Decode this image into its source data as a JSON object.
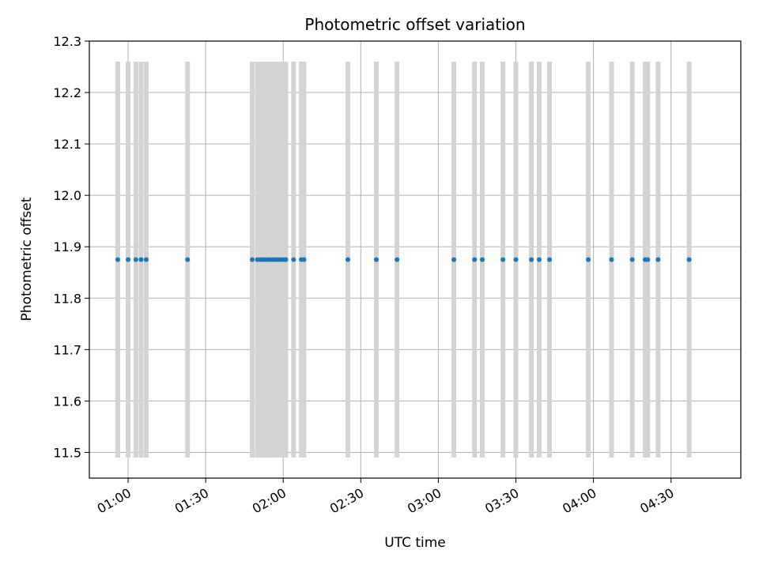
{
  "chart_data": {
    "type": "scatter",
    "title": "Photometric offset variation",
    "xlabel": "UTC time",
    "ylabel": "Photometric offset",
    "x_unit": "HH:MM",
    "xlim": [
      "00:45",
      "04:57"
    ],
    "ylim": [
      11.45,
      12.3
    ],
    "grid": true,
    "x_ticks": [
      "01:00",
      "01:30",
      "02:00",
      "02:30",
      "03:00",
      "03:30",
      "04:00",
      "04:30"
    ],
    "y_ticks": [
      11.5,
      11.6,
      11.7,
      11.8,
      11.9,
      12.0,
      12.1,
      12.2,
      12.3
    ],
    "points": {
      "color": "#1f77b4",
      "y": 11.875,
      "x": [
        "00:56",
        "01:00",
        "01:03",
        "01:05",
        "01:07",
        "01:23",
        "01:48",
        "01:50",
        "01:51",
        "01:52",
        "01:53",
        "01:54",
        "01:55",
        "01:56",
        "01:57",
        "01:58",
        "01:59",
        "02:00",
        "02:01",
        "02:04",
        "02:07",
        "02:08",
        "02:25",
        "02:36",
        "02:44",
        "03:06",
        "03:14",
        "03:17",
        "03:25",
        "03:30",
        "03:36",
        "03:39",
        "03:43",
        "03:58",
        "04:07",
        "04:15",
        "04:20",
        "04:21",
        "04:25",
        "04:37"
      ]
    },
    "vertical_bands": {
      "color": "#d3d3d3",
      "y_range": [
        11.49,
        12.26
      ],
      "x": [
        "00:56",
        "01:00",
        "01:03",
        "01:05",
        "01:07",
        "01:23",
        "01:48",
        "01:50",
        "01:51",
        "01:52",
        "01:53",
        "01:54",
        "01:55",
        "01:56",
        "01:57",
        "01:58",
        "01:59",
        "02:00",
        "02:01",
        "02:04",
        "02:07",
        "02:08",
        "02:25",
        "02:36",
        "02:44",
        "03:06",
        "03:14",
        "03:17",
        "03:25",
        "03:30",
        "03:36",
        "03:39",
        "03:43",
        "03:58",
        "04:07",
        "04:15",
        "04:20",
        "04:21",
        "04:25",
        "04:37"
      ]
    }
  }
}
